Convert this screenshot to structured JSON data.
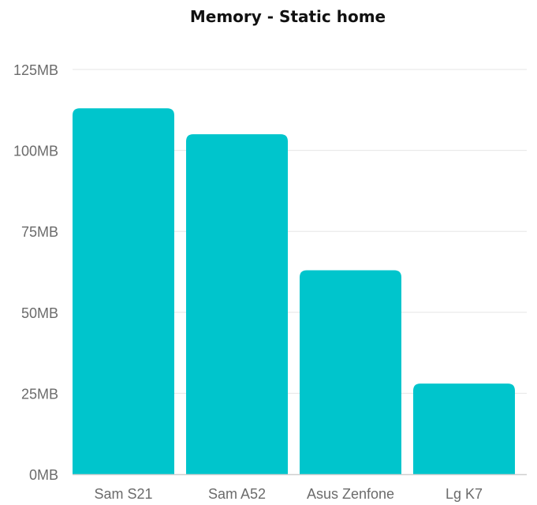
{
  "chart_data": {
    "type": "bar",
    "title": "Memory - Static home",
    "xlabel": "",
    "ylabel": "",
    "categories": [
      "Sam S21",
      "Sam A52",
      "Asus Zenfone",
      "Lg K7"
    ],
    "values": [
      113,
      105,
      63,
      28
    ],
    "unit": "MB",
    "ylim": [
      0,
      125
    ],
    "yticks": [
      "0MB",
      "25MB",
      "50MB",
      "75MB",
      "100MB",
      "125MB"
    ],
    "grid": true,
    "legend": "none",
    "bar_color": "#00c5cc"
  }
}
